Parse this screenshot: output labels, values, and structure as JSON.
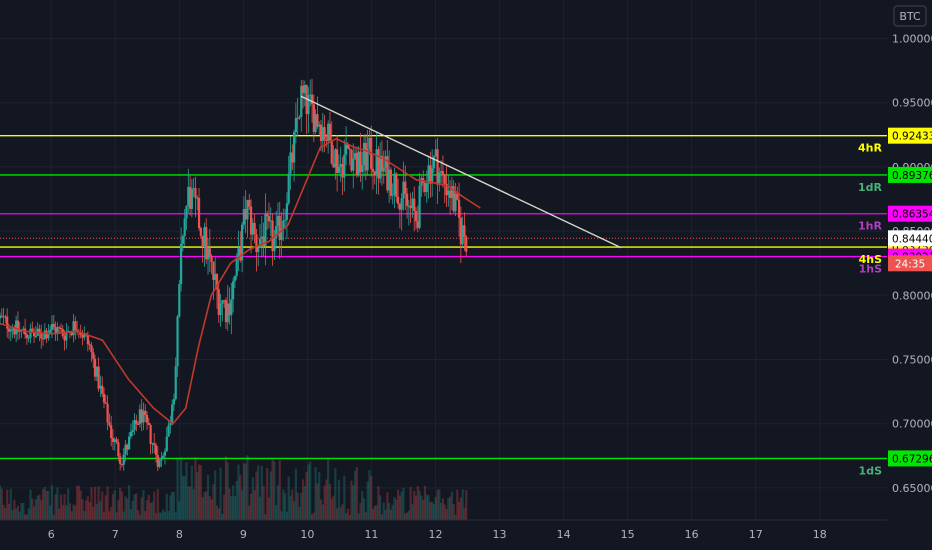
{
  "currency_badge": "BTC",
  "colors": {
    "background": "#131722",
    "grid": "#1e2230",
    "candle_up": "#26a69a",
    "candle_down": "#ef5350",
    "moving_average": "#c0392b",
    "trendline": "#d6d6c8",
    "axis_text": "#b2b5be",
    "countdown_bg": "#ef5350"
  },
  "chart_data": {
    "type": "candlestick",
    "title": "",
    "xlabel": "",
    "ylabel": "",
    "x_ticks": [
      "6",
      "7",
      "8",
      "9",
      "10",
      "11",
      "12",
      "13",
      "14",
      "15",
      "16",
      "17",
      "18"
    ],
    "x_range": [
      5.2,
      19.05
    ],
    "y_ticks": [
      "0.65000",
      "0.70000",
      "0.75000",
      "0.80000",
      "0.85000",
      "0.90000",
      "0.95000",
      "1.00000"
    ],
    "y_range": [
      0.625,
      1.03
    ],
    "grid": true,
    "current_price": 0.8444,
    "countdown": "24:35",
    "levels": [
      {
        "name": "4hR",
        "value": 0.92433,
        "price_label": "0.92433",
        "color": "#ffff00",
        "text_color": "#ffff00",
        "tag_color": "#ffff00",
        "tag_text": "#000000"
      },
      {
        "name": "1dR",
        "value": 0.89376,
        "price_label": "0.89376",
        "color": "#00e600",
        "text_color": "#4caf7a",
        "tag_color": "#00e600",
        "tag_text": "#000000"
      },
      {
        "name": "1hR",
        "value": 0.86354,
        "price_label": "0.86354",
        "color": "#ff00ff",
        "text_color": "#b040c0",
        "tag_color": "#ff00ff",
        "tag_text": "#000000"
      },
      {
        "name": "4hS",
        "value": 0.83758,
        "price_label": "0.83758",
        "color": "#ffff00",
        "text_color": "#ffff00",
        "tag_color": "#ffff00",
        "tag_text": "#000000"
      },
      {
        "name": "1hS",
        "value": 0.83021,
        "price_label": "0.83021",
        "color": "#ff00ff",
        "text_color": "#b040c0",
        "tag_color": "#ff00ff",
        "tag_text": "#000000"
      },
      {
        "name": "1dS",
        "value": 0.67296,
        "price_label": "0.67296",
        "color": "#00e600",
        "text_color": "#4caf7a",
        "tag_color": "#00e600",
        "tag_text": "#000000"
      }
    ],
    "current_price_label": "0.84440",
    "trendline": {
      "x1": 9.9,
      "y1": 0.955,
      "x2": 14.9,
      "y2": 0.837
    },
    "ohlc_anchors": [
      [
        5.2,
        0.782
      ],
      [
        5.5,
        0.772
      ],
      [
        5.8,
        0.768
      ],
      [
        6.0,
        0.775
      ],
      [
        6.2,
        0.77
      ],
      [
        6.4,
        0.778
      ],
      [
        6.6,
        0.76
      ],
      [
        6.8,
        0.72
      ],
      [
        6.95,
        0.69
      ],
      [
        7.1,
        0.672
      ],
      [
        7.25,
        0.69
      ],
      [
        7.4,
        0.708
      ],
      [
        7.55,
        0.69
      ],
      [
        7.7,
        0.668
      ],
      [
        7.85,
        0.7
      ],
      [
        7.95,
        0.75
      ],
      [
        8.05,
        0.85
      ],
      [
        8.15,
        0.88
      ],
      [
        8.3,
        0.86
      ],
      [
        8.45,
        0.83
      ],
      [
        8.6,
        0.8
      ],
      [
        8.75,
        0.79
      ],
      [
        8.9,
        0.82
      ],
      [
        9.05,
        0.87
      ],
      [
        9.2,
        0.84
      ],
      [
        9.35,
        0.85
      ],
      [
        9.5,
        0.84
      ],
      [
        9.65,
        0.87
      ],
      [
        9.8,
        0.92
      ],
      [
        9.9,
        0.955
      ],
      [
        10.05,
        0.945
      ],
      [
        10.2,
        0.935
      ],
      [
        10.35,
        0.92
      ],
      [
        10.5,
        0.9
      ],
      [
        10.65,
        0.915
      ],
      [
        10.8,
        0.9
      ],
      [
        10.95,
        0.91
      ],
      [
        11.1,
        0.9
      ],
      [
        11.25,
        0.895
      ],
      [
        11.4,
        0.885
      ],
      [
        11.55,
        0.87
      ],
      [
        11.7,
        0.86
      ],
      [
        11.85,
        0.895
      ],
      [
        12.0,
        0.905
      ],
      [
        12.1,
        0.89
      ],
      [
        12.2,
        0.885
      ],
      [
        12.3,
        0.87
      ],
      [
        12.4,
        0.85
      ],
      [
        12.5,
        0.844
      ]
    ],
    "moving_average_points": [
      [
        5.2,
        0.778
      ],
      [
        5.6,
        0.772
      ],
      [
        6.0,
        0.77
      ],
      [
        6.4,
        0.772
      ],
      [
        6.8,
        0.765
      ],
      [
        7.2,
        0.735
      ],
      [
        7.6,
        0.712
      ],
      [
        7.9,
        0.7
      ],
      [
        8.1,
        0.712
      ],
      [
        8.3,
        0.76
      ],
      [
        8.5,
        0.8
      ],
      [
        8.8,
        0.825
      ],
      [
        9.1,
        0.836
      ],
      [
        9.4,
        0.842
      ],
      [
        9.7,
        0.855
      ],
      [
        9.95,
        0.885
      ],
      [
        10.2,
        0.915
      ],
      [
        10.45,
        0.922
      ],
      [
        10.7,
        0.916
      ],
      [
        10.95,
        0.912
      ],
      [
        11.2,
        0.906
      ],
      [
        11.45,
        0.898
      ],
      [
        11.7,
        0.89
      ],
      [
        11.95,
        0.888
      ],
      [
        12.2,
        0.885
      ],
      [
        12.45,
        0.876
      ],
      [
        12.7,
        0.868
      ]
    ]
  }
}
